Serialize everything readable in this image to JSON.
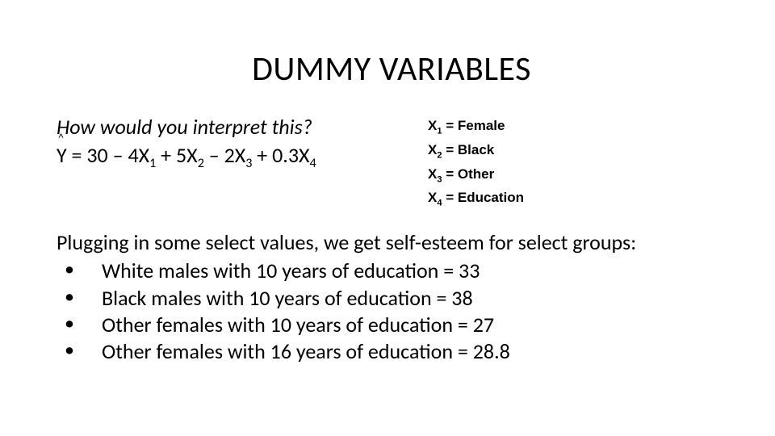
{
  "title": "DUMMY VARIABLES",
  "question": "How would you interpret this?",
  "yhat_caret": "^",
  "yhat_letter": "Y",
  "equation_after_y": " = 30 – 4X",
  "eq_sub1": "1",
  "eq_mid1": " + 5X",
  "eq_sub2": "2",
  "eq_mid2": " – 2X",
  "eq_sub3": "3",
  "eq_mid3": " + 0.3X",
  "eq_sub4": "4",
  "defs": {
    "d1_pre": "X",
    "d1_sub": "1",
    "d1_post": " = Female",
    "d2_pre": "X",
    "d2_sub": "2",
    "d2_post": " = Black",
    "d3_pre": "X",
    "d3_sub": "3",
    "d3_post": " = Other",
    "d4_pre": "X",
    "d4_sub": "4",
    "d4_post": " = Education"
  },
  "intro": "Plugging in some select values, we get self-esteem for select groups:",
  "bullets": {
    "b1": "White males with 10 years of education = 33",
    "b2": "Black males with 10 years of education = 38",
    "b3": "Other females with 10 years of education = 27",
    "b4": "Other females with 16 years of education = 28.8"
  },
  "colors": {
    "background": "#ffffff",
    "text": "#000000"
  },
  "fontsizes": {
    "title": 42,
    "body": 26,
    "defs": 17
  }
}
